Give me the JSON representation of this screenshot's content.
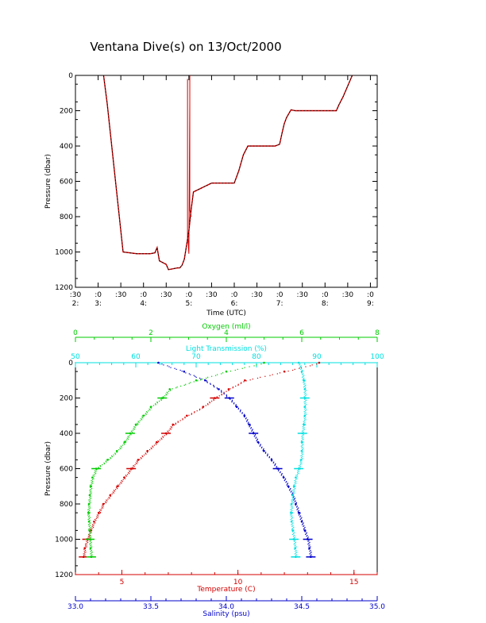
{
  "title": "Ventana Dive(s) on 13/Oct/2000",
  "colors": {
    "temperature": "#d40000",
    "salinity": "#0000cc",
    "oxygen": "#00cc00",
    "transmission": "#00e0e0",
    "axes": "#000000"
  },
  "chart_data": [
    {
      "type": "line",
      "xlabel": "Time (UTC)",
      "ylabel": "Pressure (dbar)",
      "y_ticks": [
        "0",
        "200",
        "400",
        "600",
        "800",
        "1000",
        "1200"
      ],
      "ylim": [
        0,
        1200
      ],
      "y_inverted": true,
      "xlim": [
        2.5,
        9.15
      ],
      "x_ticks": [
        {
          "t": 2.5,
          "top": ":30",
          "bottom": "2:"
        },
        {
          "t": 3.0,
          "top": ":0",
          "bottom": "3:"
        },
        {
          "t": 3.5,
          "top": ":30",
          "bottom": ""
        },
        {
          "t": 4.0,
          "top": ":0",
          "bottom": "4:"
        },
        {
          "t": 4.5,
          "top": ":30",
          "bottom": ""
        },
        {
          "t": 5.0,
          "top": ":0",
          "bottom": "5:"
        },
        {
          "t": 5.5,
          "top": ":30",
          "bottom": ""
        },
        {
          "t": 6.0,
          "top": ":0",
          "bottom": "6:"
        },
        {
          "t": 6.5,
          "top": ":30",
          "bottom": ""
        },
        {
          "t": 7.0,
          "top": ":0",
          "bottom": "7:"
        },
        {
          "t": 7.5,
          "top": ":30",
          "bottom": ""
        },
        {
          "t": 8.0,
          "top": ":0",
          "bottom": "8:"
        },
        {
          "t": 8.5,
          "top": ":30",
          "bottom": ""
        },
        {
          "t": 9.0,
          "top": ":0",
          "bottom": "9:"
        }
      ],
      "series": [
        {
          "x": [
            3.12,
            3.2,
            3.4,
            3.55,
            3.85,
            4.15,
            4.25,
            4.3,
            4.35,
            4.5,
            4.55,
            4.75,
            4.8,
            4.85,
            4.9,
            4.95,
            5.0,
            5.05,
            5.1,
            5.5,
            5.85,
            5.95,
            6.0,
            6.1,
            6.2,
            6.3,
            6.4,
            6.5,
            6.9,
            7.0,
            7.05,
            7.1,
            7.15,
            7.25,
            7.35,
            7.45,
            7.55,
            7.9,
            8.25,
            8.3,
            8.4,
            8.5,
            8.6
          ],
          "y": [
            0,
            160,
            640,
            1000,
            1010,
            1010,
            1005,
            975,
            1050,
            1070,
            1100,
            1090,
            1090,
            1075,
            1040,
            960,
            880,
            760,
            660,
            610,
            610,
            610,
            610,
            540,
            450,
            400,
            400,
            400,
            400,
            390,
            330,
            275,
            240,
            195,
            200,
            200,
            200,
            200,
            200,
            170,
            120,
            60,
            0
          ]
        },
        {
          "x": [
            4.97,
            4.97,
            4.97,
            5.0,
            5.02,
            5.02,
            5.02,
            5.05
          ],
          "y": [
            920,
            20,
            880,
            1010,
            150,
            0,
            760,
            800
          ]
        }
      ]
    },
    {
      "type": "scatter",
      "ylabel": "Pressure (dbar)",
      "y_ticks": [
        "0",
        "200",
        "400",
        "600",
        "800",
        "1000",
        "1200"
      ],
      "ylim": [
        0,
        1200
      ],
      "y_inverted": true,
      "axes": {
        "oxygen": {
          "label": "Oxygen (ml/l)",
          "range": [
            0,
            8
          ],
          "ticks": [
            "0",
            "2",
            "4",
            "6",
            "8"
          ]
        },
        "transmission": {
          "label": "Light Transmission (%)",
          "range": [
            50,
            100
          ],
          "ticks": [
            "50",
            "60",
            "70",
            "80",
            "90",
            "100"
          ]
        },
        "temperature": {
          "label": "Temperature (C)",
          "range": [
            3,
            16
          ],
          "ticks": [
            "5",
            "10",
            "15"
          ]
        },
        "salinity": {
          "label": "Salinity (psu)",
          "range": [
            33.0,
            35.0
          ],
          "ticks": [
            "33.0",
            "33.5",
            "34.0",
            "34.5",
            "35.0"
          ]
        }
      },
      "series": [
        {
          "name": "Temperature",
          "x": [
            13.5,
            12.0,
            10.3,
            9.6,
            9.0,
            8.5,
            7.8,
            7.2,
            6.9,
            6.5,
            6.1,
            5.7,
            5.4,
            5.1,
            4.8,
            4.5,
            4.2,
            4.0,
            3.8,
            3.65,
            3.5,
            3.4,
            3.35
          ],
          "y": [
            0,
            50,
            100,
            150,
            200,
            250,
            300,
            350,
            400,
            450,
            500,
            550,
            600,
            650,
            700,
            750,
            800,
            850,
            900,
            950,
            1000,
            1050,
            1100
          ]
        },
        {
          "name": "Salinity",
          "x": [
            33.55,
            33.72,
            33.86,
            33.95,
            34.02,
            34.07,
            34.12,
            34.15,
            34.18,
            34.21,
            34.25,
            34.3,
            34.34,
            34.38,
            34.41,
            34.44,
            34.46,
            34.48,
            34.5,
            34.52,
            34.54,
            34.55,
            34.56
          ],
          "y": [
            0,
            50,
            100,
            150,
            200,
            250,
            300,
            350,
            400,
            450,
            500,
            550,
            600,
            650,
            700,
            750,
            800,
            850,
            900,
            950,
            1000,
            1050,
            1100
          ]
        },
        {
          "name": "Oxygen",
          "x": [
            5.0,
            4.0,
            3.2,
            2.5,
            2.3,
            2.0,
            1.8,
            1.6,
            1.45,
            1.3,
            1.1,
            0.85,
            0.55,
            0.45,
            0.4,
            0.38,
            0.36,
            0.34,
            0.36,
            0.37,
            0.38,
            0.4,
            0.42
          ],
          "y": [
            0,
            50,
            100,
            150,
            200,
            250,
            300,
            350,
            400,
            450,
            500,
            550,
            600,
            650,
            700,
            750,
            800,
            850,
            900,
            950,
            1000,
            1050,
            1100
          ]
        },
        {
          "name": "Light Transmission",
          "x": [
            87.0,
            87.5,
            87.8,
            88.0,
            88.0,
            88.0,
            88.0,
            87.8,
            87.6,
            87.5,
            87.5,
            87.4,
            87.0,
            86.5,
            86.2,
            86.0,
            85.8,
            85.7,
            85.8,
            86.0,
            86.2,
            86.4,
            86.5
          ],
          "y": [
            0,
            50,
            100,
            150,
            200,
            250,
            300,
            350,
            400,
            450,
            500,
            550,
            600,
            650,
            700,
            750,
            800,
            850,
            900,
            950,
            1000,
            1050,
            1100
          ]
        }
      ]
    }
  ]
}
